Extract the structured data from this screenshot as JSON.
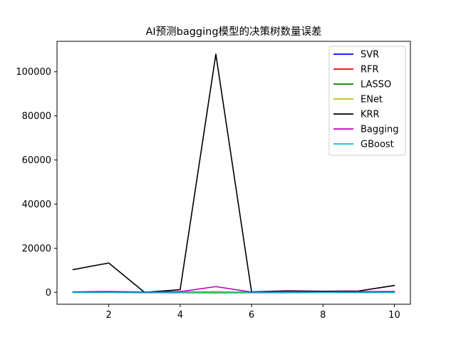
{
  "chart_data": {
    "type": "line",
    "title": "AI预测bagging模型的决策树数量误差",
    "xlabel": "",
    "ylabel": "",
    "xlim": [
      0.55,
      10.45
    ],
    "ylim": [
      -5400,
      113800
    ],
    "x": [
      1,
      2,
      3,
      4,
      5,
      6,
      7,
      8,
      9,
      10
    ],
    "xticks": [
      2,
      4,
      6,
      8,
      10
    ],
    "yticks": [
      0,
      20000,
      40000,
      60000,
      80000,
      100000
    ],
    "grid": false,
    "legend_position": "top-right",
    "series": [
      {
        "name": "SVR",
        "color": "#0000ff",
        "values": [
          100,
          120,
          80,
          90,
          110,
          70,
          90,
          100,
          80,
          120
        ]
      },
      {
        "name": "RFR",
        "color": "#ff0000",
        "values": [
          120,
          150,
          60,
          200,
          250,
          80,
          150,
          100,
          120,
          200
        ]
      },
      {
        "name": "LASSO",
        "color": "#008000",
        "values": [
          50,
          60,
          40,
          50,
          60,
          40,
          50,
          50,
          40,
          60
        ]
      },
      {
        "name": "ENet",
        "color": "#bfbf00",
        "values": [
          60,
          70,
          50,
          60,
          70,
          50,
          60,
          60,
          50,
          70
        ]
      },
      {
        "name": "KRR",
        "color": "#000000",
        "values": [
          10300,
          13300,
          0,
          1200,
          108000,
          200,
          700,
          500,
          600,
          3100
        ]
      },
      {
        "name": "Bagging",
        "color": "#bf00bf",
        "values": [
          200,
          400,
          100,
          300,
          2600,
          100,
          300,
          200,
          300,
          400
        ]
      },
      {
        "name": "GBoost",
        "color": "#00bfbf",
        "values": [
          -100,
          -100,
          -200,
          -200,
          -300,
          -200,
          -200,
          -100,
          -150,
          -100
        ]
      }
    ]
  }
}
